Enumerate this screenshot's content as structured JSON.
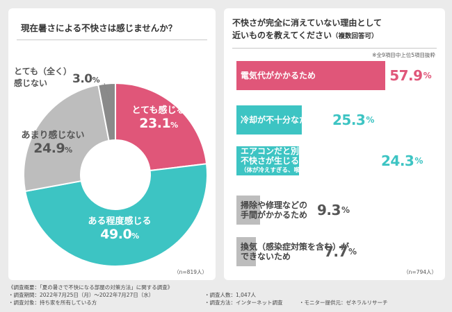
{
  "chart_data": [
    {
      "type": "pie",
      "title": "現在暑さによる不快さは感じませんか？",
      "categories": [
        "とても感じる",
        "ある程度感じる",
        "あまり感じない",
        "とても（全く）感じない"
      ],
      "values": [
        23.1,
        49.0,
        24.9,
        3.0
      ],
      "value_texts": [
        {
          "main": "23.1",
          "unit": "%"
        },
        {
          "main": "49.0",
          "unit": "%"
        },
        {
          "main": "24.9",
          "unit": "%"
        },
        {
          "main": "3.0",
          "unit": "%"
        }
      ],
      "label_lines": [
        [
          "とても感じる"
        ],
        [
          "ある程度感じる"
        ],
        [
          "あまり感じない"
        ],
        [
          "とても（全く）",
          "感じない"
        ]
      ],
      "colors": [
        "#e05679",
        "#3dc4c3",
        "#bdbdbd",
        "#8a8a8a"
      ],
      "n_note": "（n=819人）"
    },
    {
      "type": "bar",
      "orientation": "horizontal",
      "title": "不快さが完全に消えていない理由として近いものを教えてください（複数回答可）",
      "title_lines": [
        "不快さが完全に消えていない理由として",
        "近いものを教えてください"
      ],
      "title_suffix": "（複数回答可）",
      "note": "※全9項目中上位5項目抜粋",
      "categories": [
        "電気代がかかるため",
        "冷却が不十分なため",
        "エアコンだと別の不快さが生じるため（体が冷えすぎる、喉が痛くなるなど）",
        "掃除や修理などの手間がかかるため",
        "換気（感染症対策を含む）ができないため"
      ],
      "category_lines": [
        [
          {
            "text": "電気代がかかるため",
            "small": false
          }
        ],
        [
          {
            "text": "冷却が不十分なため",
            "small": false
          }
        ],
        [
          {
            "text": "エアコンだと別の",
            "small": false
          },
          {
            "text": "不快さが生じるため",
            "small": false
          },
          {
            "text": "（体が冷えすぎる、喉が痛くなるなど）",
            "small": true
          }
        ],
        [
          {
            "text": "掃除や修理などの",
            "small": false
          },
          {
            "text": "手間がかかるため",
            "small": false
          }
        ],
        [
          {
            "text": "換気（感染症対策を含む）が",
            "small": false
          },
          {
            "text": "できないため",
            "small": false
          }
        ]
      ],
      "values": [
        57.9,
        25.3,
        24.3,
        9.3,
        7.7
      ],
      "value_texts": [
        {
          "main": "57.9",
          "unit": "%"
        },
        {
          "main": "25.3",
          "unit": "%"
        },
        {
          "main": "24.3",
          "unit": "%"
        },
        {
          "main": "9.3",
          "unit": "%"
        },
        {
          "main": "7.7",
          "unit": "%"
        }
      ],
      "colors": [
        "#e05679",
        "#3dc4c3",
        "#3dc4c3",
        "#bdbdbd",
        "#bdbdbd"
      ],
      "n_note": "（n=794人）"
    }
  ],
  "footer": {
    "overview": "《調査概要：「夏の暑さで不快になる部屋の対策方法」に関する調査》",
    "period": "・調査期間：2022年7月25日（月）～2022年7月27日（水）",
    "subjects": "・調査対象：持ち家を所有している方",
    "count": "・調査人数：1,047人",
    "method": "・調査方法：インターネット調査",
    "provider": "・モニター提供元：ゼネラルリサーチ"
  }
}
